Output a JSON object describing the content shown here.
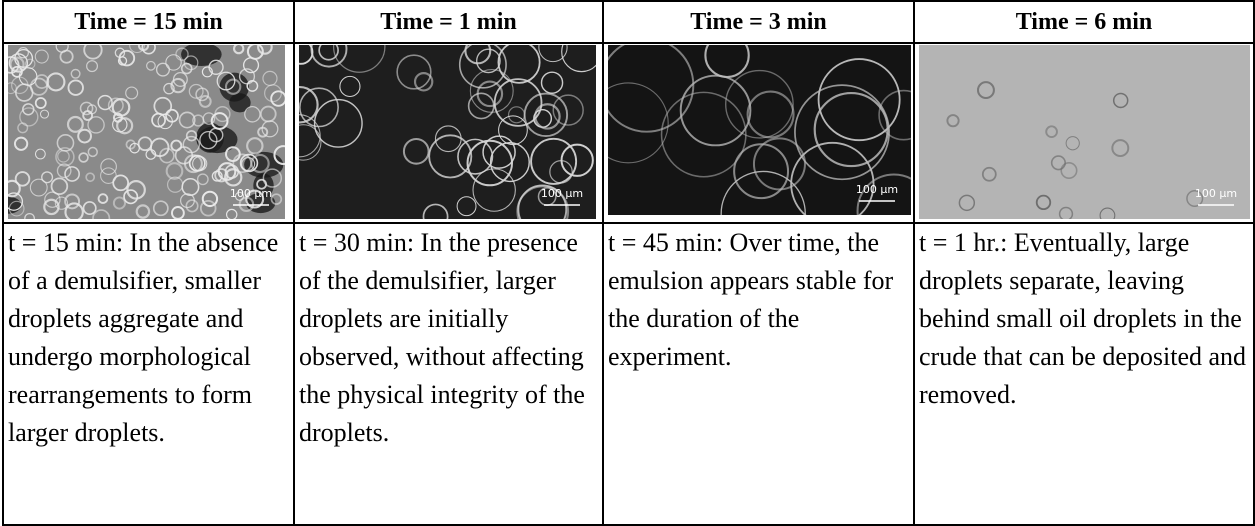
{
  "table": {
    "headers": [
      "Time = 15 min",
      "Time = 1 min",
      "Time = 3 min",
      "Time = 6 min"
    ],
    "scale_labels": [
      "100 µm",
      "100 µm",
      "100 µm",
      "100 µm"
    ],
    "descriptions": [
      "t = 15 min: In the absence of a demulsifier, smaller droplets aggregate and undergo morphological rearrangements to form larger droplets.",
      "t = 30 min: In the presence of the demulsifier, larger droplets are initially observed, without affecting the physical integrity of the droplets.",
      "t = 45 min: Over time, the emulsion appears stable for the duration of the experiment.",
      "t = 1 hr.: Eventually, large droplets separate, leaving behind small oil droplets in the crude that can be deposited and removed."
    ]
  }
}
